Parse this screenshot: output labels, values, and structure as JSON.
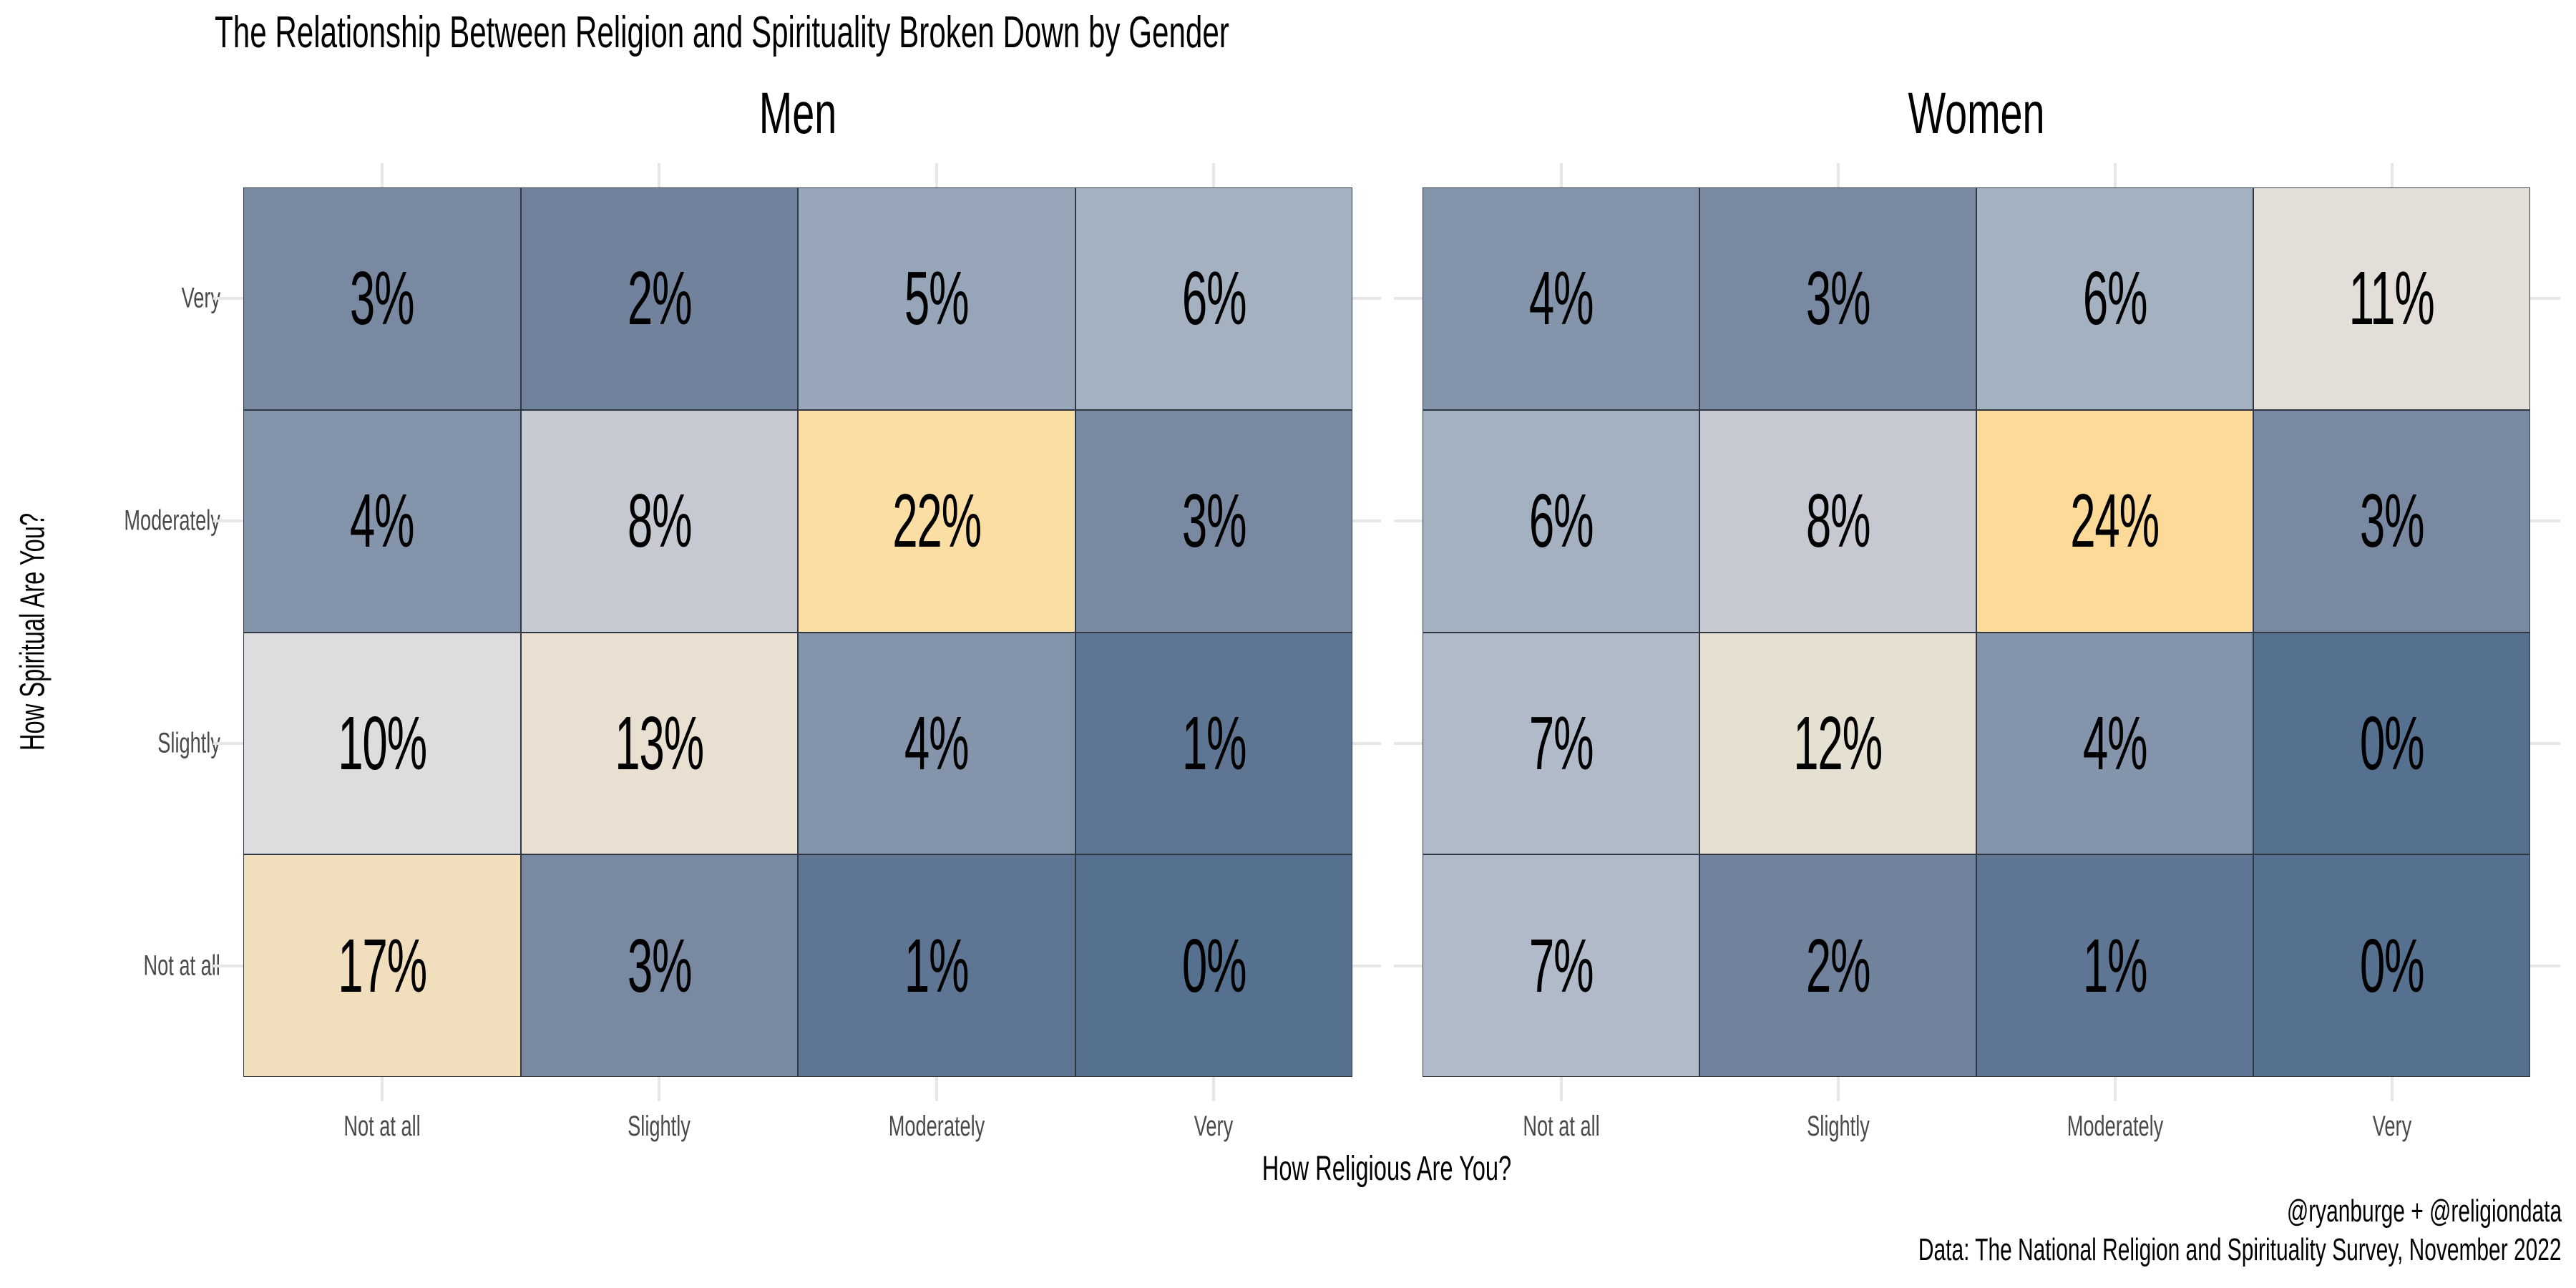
{
  "chart_data": {
    "type": "heatmap",
    "title": "The Relationship Between Religion and Spirituality Broken Down by Gender",
    "xlabel": "How Religious Are You?",
    "ylabel": "How Spiritual Are You?",
    "unit": "%",
    "x_categories": [
      "Not at all",
      "Slightly",
      "Moderately",
      "Very"
    ],
    "y_categories_top_to_bottom": [
      "Very",
      "Moderately",
      "Slightly",
      "Not at all"
    ],
    "panels": [
      {
        "title": "Men",
        "values": [
          [
            3,
            2,
            5,
            6
          ],
          [
            4,
            8,
            22,
            3
          ],
          [
            10,
            13,
            4,
            1
          ],
          [
            17,
            3,
            1,
            0
          ]
        ]
      },
      {
        "title": "Women",
        "values": [
          [
            4,
            3,
            6,
            11
          ],
          [
            6,
            8,
            24,
            3
          ],
          [
            7,
            12,
            4,
            0
          ],
          [
            7,
            2,
            1,
            0
          ]
        ]
      }
    ],
    "value_colors": {
      "0": "#56708F",
      "1": "#5E7693",
      "2": "#70829C",
      "3": "#7889A1",
      "4": "#8494AA",
      "5": "#97A5B8",
      "6": "#A4B1C1",
      "7": "#B0BAC8",
      "8": "#C6C9D1",
      "10": "#DBDDDF",
      "11": "#E2DFD8",
      "12": "#E6E0D3",
      "13": "#E9E0D1",
      "17": "#F0DEBD",
      "22": "#FADEA3",
      "24": "#FDDA97"
    },
    "caption_line1": "@ryanburge + @religiondata",
    "caption_line2": "Data: The National Religion and Spirituality Survey, November 2022",
    "grid_color": "#E7E7E7",
    "cell_border_color": "#2F3842",
    "tick_label_color": "#4A4A4A",
    "text_color": "#000000",
    "background_color": "#FFFFFF"
  },
  "layout_note": "two 4x4 percentage heatmaps faceted by gender, gold = highest values, dark slate blue = lowest"
}
